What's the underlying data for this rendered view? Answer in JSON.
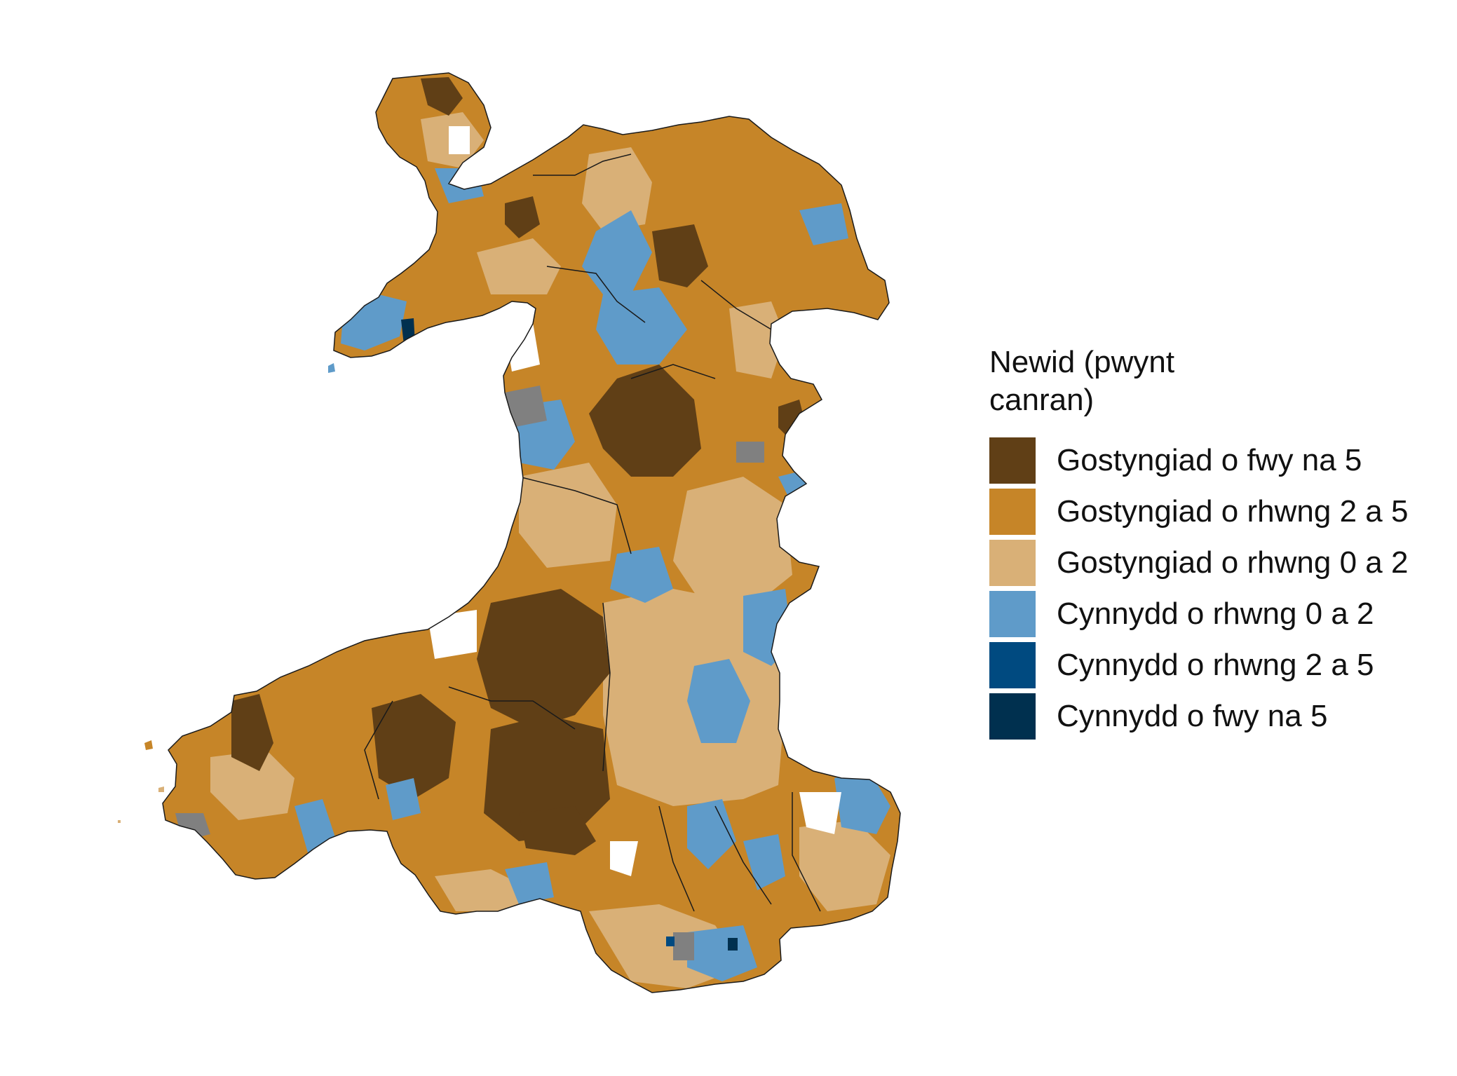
{
  "legend": {
    "title": "Newid (pwynt canran)",
    "items": [
      {
        "label": "Gostyngiad o fwy na 5",
        "color": "#603f16"
      },
      {
        "label": "Gostyngiad o rhwng 2 a 5",
        "color": "#c68528"
      },
      {
        "label": "Gostyngiad o rhwng 0 a 2",
        "color": "#d9b077"
      },
      {
        "label": "Cynnydd o rhwng 0 a 2",
        "color": "#5f9bc9"
      },
      {
        "label": "Cynnydd o rhwng 2 a 5",
        "color": "#004a80"
      },
      {
        "label": "Cynnydd o fwy na 5",
        "color": "#00304f"
      }
    ]
  },
  "map": {
    "no_data_color": "#808080",
    "empty_color": "#ffffff",
    "border_color": "#1a1a1a"
  }
}
